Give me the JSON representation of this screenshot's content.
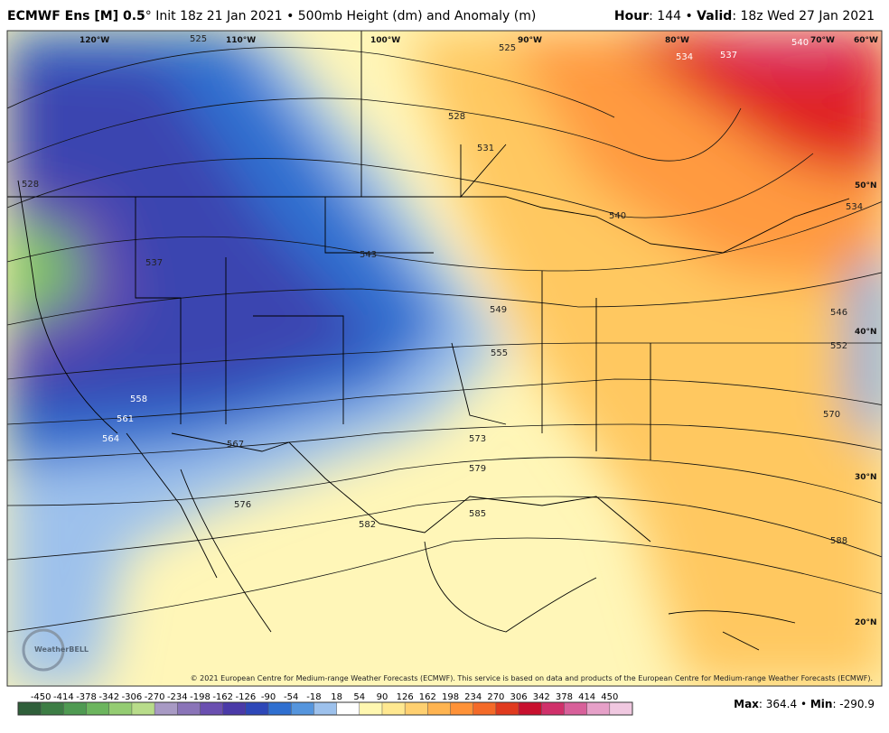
{
  "header": {
    "title_bold": "ECMWF Ens [M] 0.5",
    "title_rest": "° Init 18z 21 Jan 2021 • 500mb Height (dm) and Anomaly (m)",
    "hour_label": "Hour",
    "hour_value": ": 144 • ",
    "valid_label": "Valid",
    "valid_value": ": 18z Wed 27 Jan 2021"
  },
  "map": {
    "longitudes": [
      "120°W",
      "110°W",
      "100°W",
      "90°W",
      "80°W",
      "70°W",
      "60°W"
    ],
    "latitudes": [
      "50°N",
      "40°N",
      "30°N",
      "20°N"
    ],
    "contour_labels": [
      525,
      525,
      528,
      531,
      534,
      537,
      540,
      540,
      543,
      537,
      528,
      549,
      555,
      558,
      561,
      564,
      567,
      573,
      579,
      576,
      582,
      585,
      588,
      570,
      552,
      546,
      534
    ],
    "logo": "WeatherBELL",
    "copyright": "© 2021 European Centre for Medium-range Weather Forecasts (ECMWF). This service is based on data and products of the European Centre for Medium-range Weather Forecasts (ECMWF)."
  },
  "colorbar": {
    "ticks": [
      -450,
      -414,
      -378,
      -342,
      -306,
      -270,
      -234,
      -198,
      -162,
      -126,
      -90,
      -54,
      -18,
      18,
      54,
      90,
      126,
      162,
      198,
      234,
      270,
      306,
      342,
      378,
      414,
      450
    ],
    "colors": [
      "#2f5f3a",
      "#3d7d45",
      "#4f9a52",
      "#6cb55e",
      "#94cc72",
      "#b8dc8a",
      "#a89ac4",
      "#8a74b8",
      "#6a4fb0",
      "#4a3aa8",
      "#2d47b8",
      "#2f6fd0",
      "#5595dd",
      "#9dc1ec",
      "#ffffff",
      "#fff7b0",
      "#ffe890",
      "#ffd070",
      "#ffb450",
      "#ff9238",
      "#f46a28",
      "#e03a1e",
      "#c8102e",
      "#d0306a",
      "#d8609a",
      "#e6a0c8",
      "#f0c8e0"
    ]
  },
  "stats": {
    "max_label": "Max",
    "max_value": ": 364.4 • ",
    "min_label": "Min",
    "min_value": ": -290.9"
  }
}
